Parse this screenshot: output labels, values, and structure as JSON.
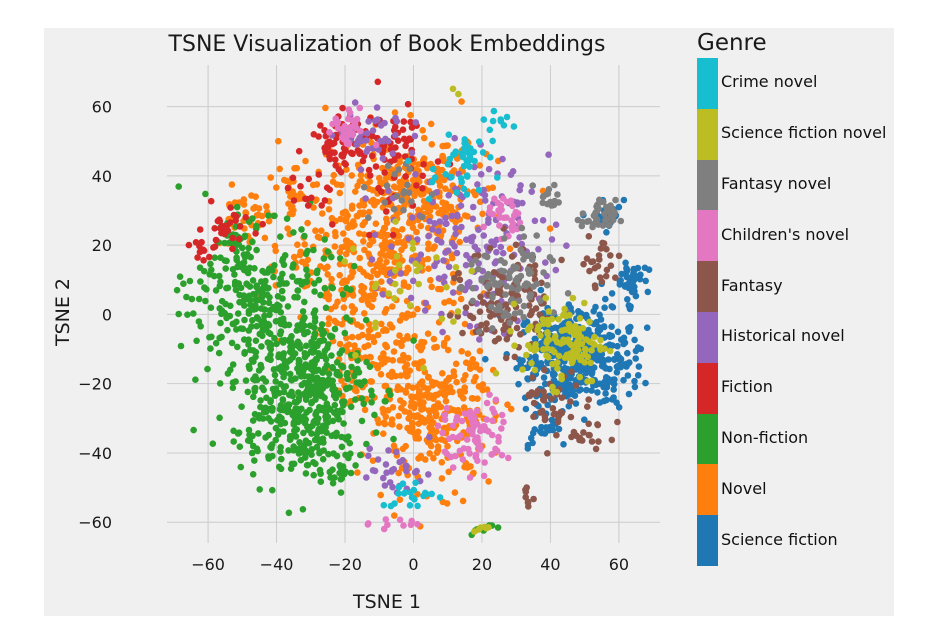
{
  "chart_data": {
    "type": "scatter",
    "title": "TSNE Visualization of Book Embeddings",
    "xlabel": "TSNE 1",
    "ylabel": "TSNE 2",
    "xlim": [
      -72,
      72
    ],
    "ylim": [
      -66,
      72
    ],
    "xticks": [
      -60,
      -40,
      -20,
      0,
      20,
      40,
      60
    ],
    "yticks": [
      -60,
      -40,
      -20,
      0,
      20,
      40,
      60
    ],
    "grid": true,
    "legend_title": "Genre",
    "legend_placement": "right, outside plot",
    "series": [
      {
        "name": "Science fiction",
        "color": "#1f77b4",
        "clusters": [
          [
            47,
            -12,
            8,
            7,
            380
          ],
          [
            63,
            10,
            2,
            3,
            40
          ],
          [
            56,
            28,
            3,
            3,
            20
          ],
          [
            37,
            -32,
            5,
            5,
            30
          ],
          [
            60,
            -15,
            3,
            4,
            25
          ]
        ]
      },
      {
        "name": "Novel",
        "color": "#ff7f0e",
        "clusters": [
          [
            5,
            -28,
            9,
            10,
            320
          ],
          [
            -10,
            20,
            14,
            14,
            420
          ],
          [
            2,
            35,
            10,
            8,
            180
          ],
          [
            -50,
            28,
            4,
            4,
            40
          ],
          [
            -35,
            35,
            3,
            3,
            20
          ],
          [
            -15,
            -10,
            6,
            8,
            80
          ]
        ]
      },
      {
        "name": "Non-fiction",
        "color": "#2ca02c",
        "clusters": [
          [
            -33,
            -22,
            10,
            12,
            520
          ],
          [
            -45,
            5,
            10,
            10,
            250
          ],
          [
            -52,
            22,
            3,
            3,
            30
          ],
          [
            -22,
            -45,
            3,
            4,
            25
          ],
          [
            20,
            -62,
            2,
            1,
            8
          ]
        ]
      },
      {
        "name": "Fiction",
        "color": "#d62728",
        "clusters": [
          [
            -20,
            50,
            5,
            4,
            70
          ],
          [
            -5,
            45,
            6,
            8,
            60
          ],
          [
            -55,
            25,
            4,
            3,
            30
          ],
          [
            -62,
            18,
            1.5,
            1.5,
            10
          ],
          [
            -30,
            35,
            4,
            4,
            15
          ]
        ]
      },
      {
        "name": "Historical novel",
        "color": "#9467bd",
        "clusters": [
          [
            15,
            20,
            12,
            12,
            180
          ],
          [
            -10,
            52,
            6,
            4,
            40
          ],
          [
            -5,
            -45,
            5,
            4,
            30
          ]
        ]
      },
      {
        "name": "Fantasy",
        "color": "#8c564b",
        "clusters": [
          [
            27,
            5,
            6,
            8,
            110
          ],
          [
            42,
            -25,
            5,
            4,
            40
          ],
          [
            33,
            -53,
            1.5,
            1.5,
            8
          ],
          [
            55,
            15,
            4,
            4,
            25
          ],
          [
            50,
            -35,
            5,
            3,
            20
          ]
        ]
      },
      {
        "name": "Children's novel",
        "color": "#e377c2",
        "clusters": [
          [
            18,
            -35,
            5,
            5,
            80
          ],
          [
            27,
            28,
            3,
            3,
            30
          ],
          [
            -20,
            53,
            3,
            3,
            30
          ],
          [
            -5,
            -60,
            4,
            1,
            10
          ]
        ]
      },
      {
        "name": "Fantasy novel",
        "color": "#7f7f7f",
        "clusters": [
          [
            28,
            8,
            6,
            7,
            90
          ],
          [
            54,
            28,
            2.5,
            2.5,
            40
          ],
          [
            40,
            34,
            2,
            2,
            15
          ],
          [
            -5,
            35,
            5,
            5,
            20
          ]
        ]
      },
      {
        "name": "Science fiction novel",
        "color": "#bcbd22",
        "clusters": [
          [
            44,
            -8,
            6,
            6,
            120
          ],
          [
            12,
            65,
            0.8,
            0.8,
            2
          ],
          [
            20,
            -61,
            2,
            1,
            6
          ],
          [
            0,
            10,
            10,
            10,
            30
          ]
        ]
      },
      {
        "name": "Crime novel",
        "color": "#17becf",
        "clusters": [
          [
            16,
            46,
            3,
            3,
            30
          ],
          [
            12,
            38,
            4,
            3,
            15
          ],
          [
            0,
            -52,
            5,
            2,
            20
          ],
          [
            25,
            55,
            3,
            3,
            10
          ]
        ]
      }
    ]
  }
}
